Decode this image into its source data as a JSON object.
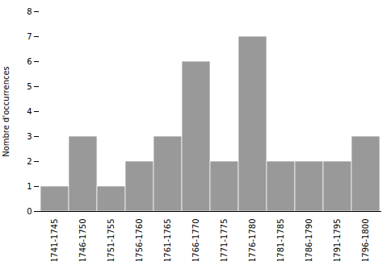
{
  "chart_data": {
    "type": "bar",
    "categories": [
      "1741-1745",
      "1746-1750",
      "1751-1755",
      "1756-1760",
      "1761-1765",
      "1766-1770",
      "1771-1775",
      "1776-1780",
      "1781-1785",
      "1786-1790",
      "1791-1795",
      "1796-1800"
    ],
    "values": [
      1,
      3,
      1,
      2,
      3,
      6,
      2,
      7,
      2,
      2,
      2,
      3
    ],
    "color": "#999999",
    "ylabel": "Nombre d'occurrences",
    "ylim": [
      0,
      8
    ],
    "yticks": [
      0,
      1,
      2,
      3,
      4,
      5,
      6,
      7,
      8
    ],
    "grid": false
  }
}
